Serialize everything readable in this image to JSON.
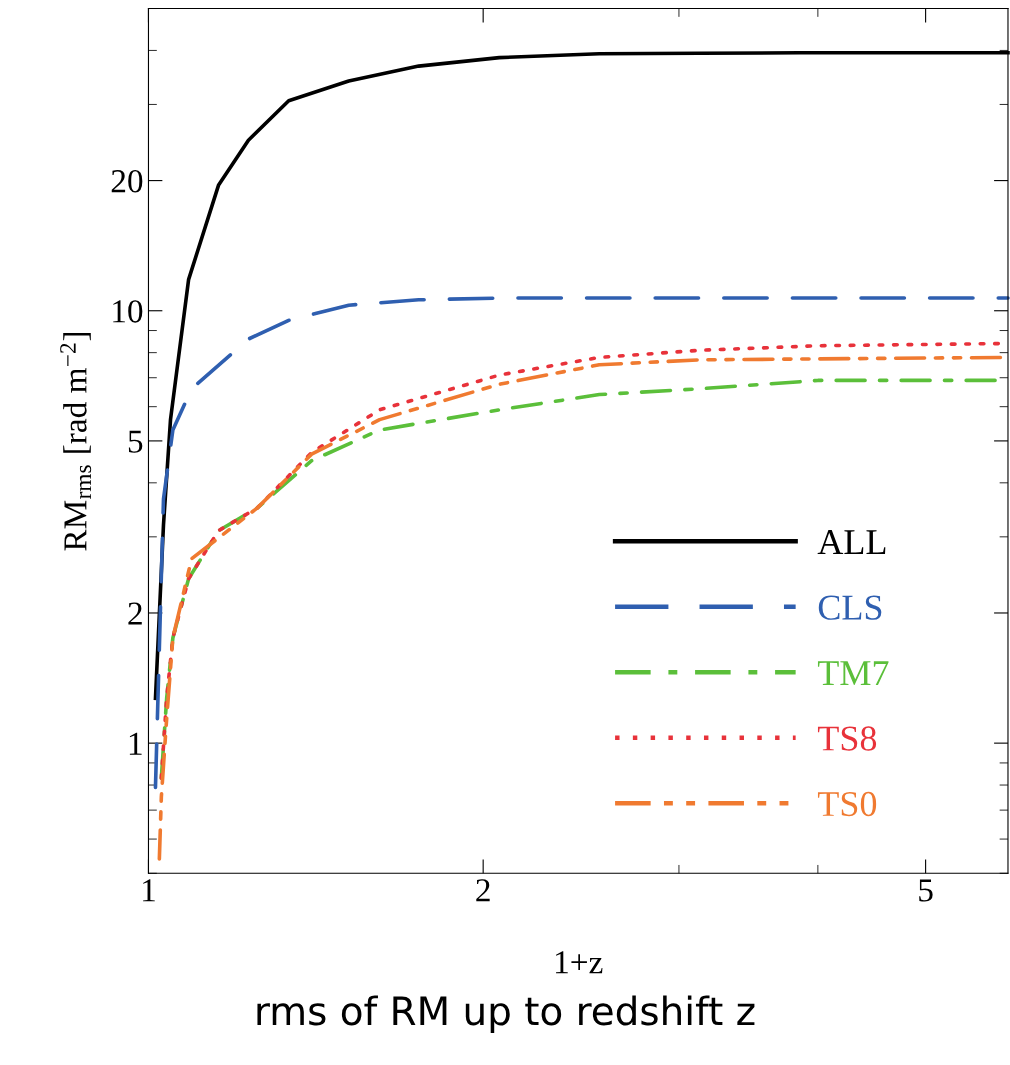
{
  "chart_data": {
    "type": "line",
    "xlabel": "1+z",
    "ylabel": "RM$_{rms}$ [rad m$^{−2}$]",
    "annotations": [
      "rms of RM up to redshift z"
    ],
    "log": "xy",
    "xlim": [
      1.0,
      5.93
    ],
    "ylim": [
      0.5,
      50
    ],
    "xticks": [
      1,
      2,
      5
    ],
    "yticks": [
      1,
      2,
      5,
      10,
      20
    ],
    "legend": "bottom right",
    "grid": false,
    "marker": "none",
    "series": [
      {
        "name": "ALL",
        "color": "#000000",
        "line_style": "solid",
        "x": [
          1.0146,
          1.0316,
          1.0467,
          1.0866,
          1.156,
          1.23,
          1.337,
          1.514,
          1.75,
          2.068,
          2.544,
          3.13,
          3.85,
          5.93
        ],
        "values": [
          1.27,
          3.2,
          5.6,
          11.8,
          19.5,
          24.8,
          30.6,
          34,
          36.8,
          38.5,
          39.3,
          39.4,
          39.5,
          39.5
        ]
      },
      {
        "name": "CLS",
        "color": "#2f5fb0",
        "line_style": "dashed",
        "x": [
          1.0146,
          1.021,
          1.0316,
          1.0518,
          1.0935,
          1.23,
          1.337,
          1.514,
          1.75,
          2.068,
          2.544,
          3.13,
          5.93
        ],
        "values": [
          0.79,
          1.41,
          3.67,
          5.3,
          6.6,
          8.6,
          9.5,
          10.3,
          10.6,
          10.7,
          10.7,
          10.7,
          10.7
        ]
      },
      {
        "name": "TM7",
        "color": "#5bbf3a",
        "line_style": "dashdot",
        "x": [
          1.027,
          1.0384,
          1.0518,
          1.0866,
          1.156,
          1.253,
          1.402,
          1.614,
          2.068,
          2.544,
          3.13,
          4.0,
          5.93
        ],
        "values": [
          0.83,
          1.27,
          1.75,
          2.4,
          3.1,
          3.5,
          4.5,
          5.3,
          5.9,
          6.4,
          6.6,
          6.9,
          6.9
        ]
      },
      {
        "name": "TS8",
        "color": "#e8323a",
        "line_style": "dotted",
        "x": [
          1.027,
          1.0384,
          1.0518,
          1.0866,
          1.156,
          1.253,
          1.402,
          1.614,
          2.068,
          2.544,
          3.13,
          4.0,
          5.93
        ],
        "values": [
          0.83,
          1.27,
          1.75,
          2.4,
          3.1,
          3.5,
          4.7,
          5.9,
          7.1,
          7.8,
          8.1,
          8.3,
          8.4
        ]
      },
      {
        "name": "TS0",
        "color": "#f07a30",
        "line_style": "dashdotdot",
        "x": [
          1.0228,
          1.027,
          1.0384,
          1.0518,
          1.0935,
          1.253,
          1.402,
          1.614,
          2.068,
          2.544,
          3.13,
          5.93
        ],
        "values": [
          0.54,
          0.75,
          1.14,
          1.75,
          2.67,
          3.5,
          4.66,
          5.6,
          6.76,
          7.5,
          7.7,
          7.8
        ]
      }
    ]
  }
}
